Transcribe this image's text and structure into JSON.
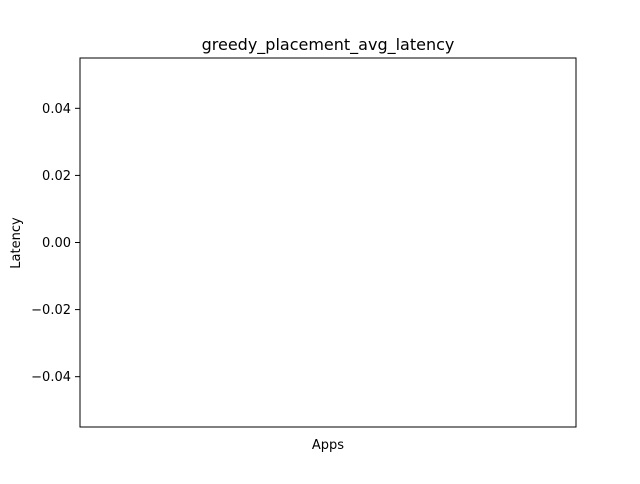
{
  "chart_data": {
    "type": "bar",
    "title": "greedy_placement_avg_latency",
    "xlabel": "Apps",
    "ylabel": "Latency",
    "categories": [],
    "values": [],
    "ylim": [
      -0.055,
      0.055
    ],
    "yticks": [
      -0.04,
      -0.02,
      0.0,
      0.02,
      0.04
    ],
    "ytick_labels": [
      "−0.04",
      "−0.02",
      "0.00",
      "0.02",
      "0.04"
    ],
    "grid": false,
    "legend": "none"
  }
}
